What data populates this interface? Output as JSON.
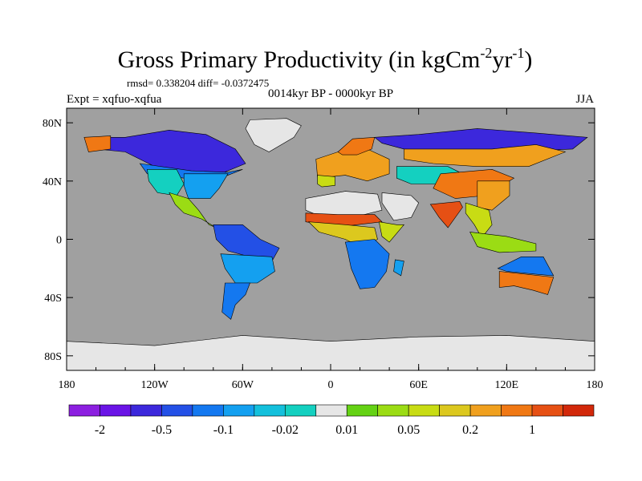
{
  "chart_data": {
    "type": "heatmap",
    "title": "Gross Primary Productivity (in kgCm",
    "title_units": [
      {
        "text": "Gross Primary Productivity (in kgCm",
        "sup": false
      },
      {
        "text": "-2",
        "sup": true
      },
      {
        "text": "yr",
        "sup": false
      },
      {
        "text": "-1",
        "sup": true
      },
      {
        "text": ")",
        "sup": false
      }
    ],
    "stats": "rmsd= 0.338204 diff= -0.0372475",
    "subtitle": "0014kyr BP - 0000kyr BP",
    "left_label": "Expt = xqfuo-xqfua",
    "season": "JJA",
    "x_ticks": [
      {
        "value": -180,
        "label": "180"
      },
      {
        "value": -120,
        "label": "120W"
      },
      {
        "value": -60,
        "label": "60W"
      },
      {
        "value": 0,
        "label": "0"
      },
      {
        "value": 60,
        "label": "60E"
      },
      {
        "value": 120,
        "label": "120E"
      },
      {
        "value": 180,
        "label": "180"
      }
    ],
    "y_ticks": [
      {
        "value": 80,
        "label": "80N"
      },
      {
        "value": 40,
        "label": "40N"
      },
      {
        "value": 0,
        "label": "0"
      },
      {
        "value": -40,
        "label": "40S"
      },
      {
        "value": -80,
        "label": "80S"
      }
    ],
    "xlim": [
      -180,
      180
    ],
    "ylim": [
      -90,
      90
    ],
    "background_color": "#a0a0a0",
    "colorbar": {
      "colors": [
        "#8c1fe0",
        "#6a14e6",
        "#3c28dc",
        "#2350e6",
        "#1478f0",
        "#14a0f0",
        "#14c0dc",
        "#14d0c0",
        "#e6e6e6",
        "#64d214",
        "#9bdc14",
        "#c8dc14",
        "#dcc81e",
        "#f0a01e",
        "#f07814",
        "#e65014",
        "#d2280a"
      ],
      "labels": [
        {
          "boundary": 1,
          "text": "-2"
        },
        {
          "boundary": 3,
          "text": "-0.5"
        },
        {
          "boundary": 5,
          "text": "-0.1"
        },
        {
          "boundary": 7,
          "text": "-0.02"
        },
        {
          "boundary": 9,
          "text": "0.01"
        },
        {
          "boundary": 11,
          "text": "0.05"
        },
        {
          "boundary": 13,
          "text": "0.2"
        },
        {
          "boundary": 15,
          "text": "1"
        }
      ]
    },
    "regions": [
      {
        "name": "greenland-ice",
        "bin": 8,
        "lon_lat": [
          [
            -55,
            82
          ],
          [
            -30,
            83
          ],
          [
            -20,
            78
          ],
          [
            -25,
            70
          ],
          [
            -42,
            60
          ],
          [
            -52,
            65
          ],
          [
            -58,
            76
          ]
        ]
      },
      {
        "name": "north-america-core",
        "bin": 2,
        "lon_lat": [
          [
            -165,
            70
          ],
          [
            -140,
            70
          ],
          [
            -110,
            75
          ],
          [
            -85,
            72
          ],
          [
            -65,
            62
          ],
          [
            -58,
            52
          ],
          [
            -75,
            45
          ],
          [
            -95,
            45
          ],
          [
            -120,
            50
          ],
          [
            -140,
            60
          ],
          [
            -160,
            62
          ]
        ]
      },
      {
        "name": "alaska-west",
        "bin": 14,
        "lon_lat": [
          [
            -168,
            70
          ],
          [
            -150,
            71
          ],
          [
            -150,
            62
          ],
          [
            -165,
            60
          ]
        ]
      },
      {
        "name": "canada-south",
        "bin": 4,
        "lon_lat": [
          [
            -130,
            52
          ],
          [
            -95,
            47
          ],
          [
            -70,
            46
          ],
          [
            -60,
            48
          ],
          [
            -75,
            42
          ],
          [
            -100,
            42
          ],
          [
            -125,
            45
          ]
        ]
      },
      {
        "name": "usa-west",
        "bin": 7,
        "lon_lat": [
          [
            -125,
            48
          ],
          [
            -105,
            48
          ],
          [
            -100,
            38
          ],
          [
            -105,
            30
          ],
          [
            -118,
            32
          ],
          [
            -124,
            40
          ]
        ]
      },
      {
        "name": "usa-east",
        "bin": 5,
        "lon_lat": [
          [
            -100,
            45
          ],
          [
            -70,
            45
          ],
          [
            -76,
            35
          ],
          [
            -82,
            28
          ],
          [
            -97,
            28
          ],
          [
            -100,
            37
          ]
        ]
      },
      {
        "name": "mexico-central-america",
        "bin": 10,
        "lon_lat": [
          [
            -110,
            32
          ],
          [
            -97,
            28
          ],
          [
            -90,
            20
          ],
          [
            -83,
            10
          ],
          [
            -78,
            8
          ],
          [
            -88,
            14
          ],
          [
            -100,
            18
          ],
          [
            -106,
            24
          ]
        ]
      },
      {
        "name": "south-america-north",
        "bin": 3,
        "lon_lat": [
          [
            -80,
            10
          ],
          [
            -60,
            10
          ],
          [
            -48,
            0
          ],
          [
            -35,
            -6
          ],
          [
            -40,
            -15
          ],
          [
            -55,
            -12
          ],
          [
            -70,
            -8
          ],
          [
            -78,
            0
          ]
        ]
      },
      {
        "name": "south-america-central",
        "bin": 5,
        "lon_lat": [
          [
            -75,
            -10
          ],
          [
            -40,
            -12
          ],
          [
            -38,
            -22
          ],
          [
            -50,
            -30
          ],
          [
            -65,
            -30
          ],
          [
            -72,
            -20
          ]
        ]
      },
      {
        "name": "south-america-south",
        "bin": 4,
        "lon_lat": [
          [
            -72,
            -30
          ],
          [
            -55,
            -30
          ],
          [
            -58,
            -38
          ],
          [
            -65,
            -45
          ],
          [
            -68,
            -55
          ],
          [
            -74,
            -50
          ],
          [
            -73,
            -40
          ]
        ]
      },
      {
        "name": "sahara",
        "bin": 8,
        "lon_lat": [
          [
            -17,
            28
          ],
          [
            10,
            33
          ],
          [
            32,
            31
          ],
          [
            35,
            20
          ],
          [
            15,
            15
          ],
          [
            -5,
            15
          ],
          [
            -17,
            20
          ]
        ]
      },
      {
        "name": "sahel",
        "bin": 15,
        "lon_lat": [
          [
            -17,
            18
          ],
          [
            5,
            17
          ],
          [
            30,
            17
          ],
          [
            35,
            12
          ],
          [
            10,
            9
          ],
          [
            -5,
            10
          ],
          [
            -17,
            12
          ]
        ]
      },
      {
        "name": "west-africa-forest",
        "bin": 12,
        "lon_lat": [
          [
            -15,
            12
          ],
          [
            10,
            10
          ],
          [
            30,
            8
          ],
          [
            32,
            0
          ],
          [
            20,
            -5
          ],
          [
            10,
            0
          ],
          [
            -8,
            5
          ]
        ]
      },
      {
        "name": "central-south-africa",
        "bin": 4,
        "lon_lat": [
          [
            10,
            -2
          ],
          [
            30,
            0
          ],
          [
            40,
            -10
          ],
          [
            38,
            -22
          ],
          [
            30,
            -33
          ],
          [
            20,
            -34
          ],
          [
            14,
            -20
          ],
          [
            12,
            -10
          ]
        ]
      },
      {
        "name": "east-africa",
        "bin": 11,
        "lon_lat": [
          [
            33,
            12
          ],
          [
            45,
            10
          ],
          [
            50,
            10
          ],
          [
            40,
            -2
          ],
          [
            35,
            2
          ]
        ]
      },
      {
        "name": "madagascar",
        "bin": 5,
        "lon_lat": [
          [
            44,
            -14
          ],
          [
            50,
            -15
          ],
          [
            48,
            -25
          ],
          [
            43,
            -22
          ]
        ]
      },
      {
        "name": "europe-west",
        "bin": 13,
        "lon_lat": [
          [
            -10,
            55
          ],
          [
            5,
            60
          ],
          [
            25,
            62
          ],
          [
            40,
            55
          ],
          [
            40,
            45
          ],
          [
            25,
            40
          ],
          [
            10,
            44
          ],
          [
            0,
            43
          ],
          [
            -9,
            43
          ]
        ]
      },
      {
        "name": "iberia-med",
        "bin": 11,
        "lon_lat": [
          [
            -9,
            44
          ],
          [
            3,
            43
          ],
          [
            3,
            37
          ],
          [
            -6,
            36
          ],
          [
            -9,
            38
          ]
        ]
      },
      {
        "name": "scandinavia",
        "bin": 14,
        "lon_lat": [
          [
            5,
            60
          ],
          [
            15,
            69
          ],
          [
            30,
            70
          ],
          [
            28,
            62
          ],
          [
            18,
            58
          ],
          [
            8,
            58
          ]
        ]
      },
      {
        "name": "russia-north",
        "bin": 2,
        "lon_lat": [
          [
            30,
            70
          ],
          [
            60,
            72
          ],
          [
            100,
            76
          ],
          [
            140,
            73
          ],
          [
            175,
            70
          ],
          [
            165,
            62
          ],
          [
            120,
            60
          ],
          [
            80,
            60
          ],
          [
            50,
            62
          ],
          [
            35,
            66
          ]
        ]
      },
      {
        "name": "siberia-central",
        "bin": 13,
        "lon_lat": [
          [
            50,
            62
          ],
          [
            110,
            62
          ],
          [
            140,
            65
          ],
          [
            160,
            60
          ],
          [
            135,
            50
          ],
          [
            100,
            50
          ],
          [
            70,
            52
          ],
          [
            50,
            55
          ]
        ]
      },
      {
        "name": "central-asia",
        "bin": 7,
        "lon_lat": [
          [
            45,
            50
          ],
          [
            80,
            50
          ],
          [
            90,
            45
          ],
          [
            75,
            38
          ],
          [
            55,
            38
          ],
          [
            45,
            42
          ]
        ]
      },
      {
        "name": "middle-east-desert",
        "bin": 8,
        "lon_lat": [
          [
            35,
            32
          ],
          [
            55,
            30
          ],
          [
            60,
            25
          ],
          [
            55,
            15
          ],
          [
            43,
            13
          ],
          [
            35,
            25
          ]
        ]
      },
      {
        "name": "tibet-mongolia",
        "bin": 14,
        "lon_lat": [
          [
            75,
            45
          ],
          [
            110,
            48
          ],
          [
            125,
            42
          ],
          [
            105,
            30
          ],
          [
            85,
            28
          ],
          [
            70,
            35
          ]
        ]
      },
      {
        "name": "india",
        "bin": 15,
        "lon_lat": [
          [
            68,
            24
          ],
          [
            88,
            26
          ],
          [
            90,
            22
          ],
          [
            80,
            8
          ],
          [
            74,
            15
          ]
        ]
      },
      {
        "name": "china-east",
        "bin": 13,
        "lon_lat": [
          [
            100,
            40
          ],
          [
            122,
            40
          ],
          [
            122,
            30
          ],
          [
            110,
            20
          ],
          [
            100,
            22
          ]
        ]
      },
      {
        "name": "southeast-asia",
        "bin": 11,
        "lon_lat": [
          [
            92,
            25
          ],
          [
            108,
            20
          ],
          [
            110,
            10
          ],
          [
            103,
            1
          ],
          [
            98,
            10
          ],
          [
            92,
            18
          ]
        ]
      },
      {
        "name": "indonesia",
        "bin": 10,
        "lon_lat": [
          [
            95,
            5
          ],
          [
            120,
            2
          ],
          [
            140,
            -3
          ],
          [
            140,
            -8
          ],
          [
            115,
            -9
          ],
          [
            100,
            -5
          ]
        ]
      },
      {
        "name": "australia-north",
        "bin": 4,
        "lon_lat": [
          [
            114,
            -20
          ],
          [
            130,
            -12
          ],
          [
            145,
            -12
          ],
          [
            152,
            -25
          ],
          [
            140,
            -24
          ],
          [
            120,
            -22
          ]
        ]
      },
      {
        "name": "australia-south",
        "bin": 14,
        "lon_lat": [
          [
            115,
            -22
          ],
          [
            152,
            -26
          ],
          [
            148,
            -38
          ],
          [
            138,
            -35
          ],
          [
            125,
            -32
          ],
          [
            115,
            -33
          ]
        ]
      },
      {
        "name": "antarctica",
        "bin": 8,
        "lon_lat": [
          [
            -180,
            -70
          ],
          [
            -120,
            -73
          ],
          [
            -60,
            -66
          ],
          [
            0,
            -70
          ],
          [
            60,
            -67
          ],
          [
            120,
            -66
          ],
          [
            180,
            -70
          ],
          [
            180,
            -90
          ],
          [
            -180,
            -90
          ]
        ]
      }
    ]
  }
}
